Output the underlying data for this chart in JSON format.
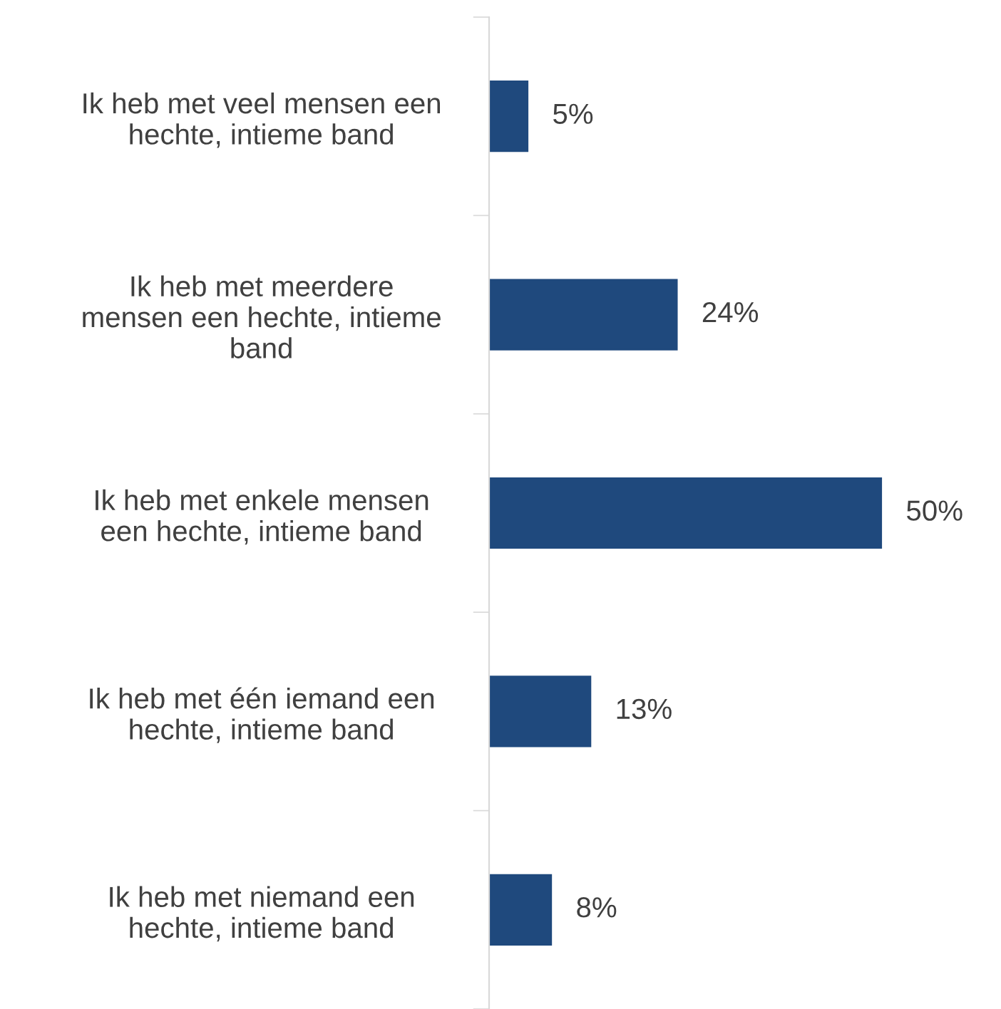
{
  "chart_data": {
    "type": "bar",
    "orientation": "horizontal",
    "categories": [
      "Ik heb met veel mensen een\nhechte, intieme band",
      "Ik heb met meerdere\nmensen een hechte, intieme\nband",
      "Ik heb met enkele mensen\neen hechte, intieme band",
      "Ik heb met één iemand een\nhechte, intieme band",
      "Ik heb met niemand een\nhechte, intieme band"
    ],
    "values": [
      5,
      24,
      50,
      13,
      8
    ],
    "value_labels": [
      "5%",
      "24%",
      "50%",
      "13%",
      "8%"
    ],
    "color": "#1f497d",
    "grid": false,
    "legend": false
  }
}
